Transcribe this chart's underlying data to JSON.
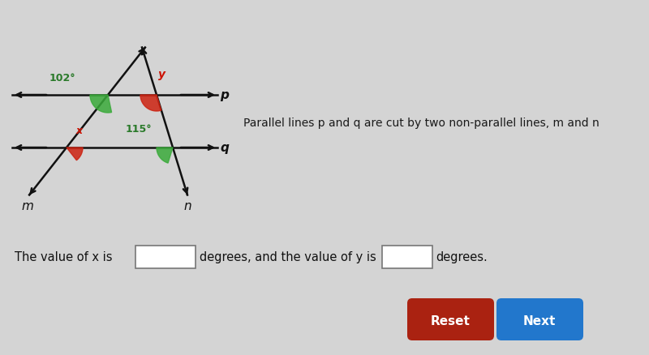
{
  "bg_color": "#d4d4d4",
  "line_color": "#111111",
  "green_color": "#2a7a2a",
  "red_color": "#cc1100",
  "angle_green_fill": "#3aaa3a",
  "angle_red_fill": "#cc2211",
  "label_102": "102°",
  "label_y": "y",
  "label_115": "115°",
  "label_x": "x",
  "label_p": "p",
  "label_q": "q",
  "label_m": "m",
  "label_n": "n",
  "description": "Parallel lines p and q are cut by two non-parallel lines, m and n",
  "text_value_x": "The value of x is",
  "text_degrees1": "degrees, and the value of y is",
  "text_degrees2": "degrees.",
  "reset_color": "#aa2211",
  "next_color": "#2277cc",
  "button_text_color": "#ffffff",
  "reset_label": "Reset",
  "next_label": "Next"
}
